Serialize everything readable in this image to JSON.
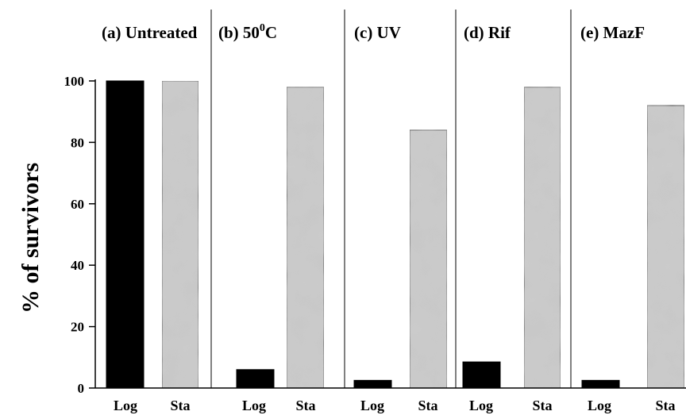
{
  "chart_data": {
    "type": "bar",
    "ylabel": "% of survivors",
    "ylim": [
      0,
      100
    ],
    "yticks": [
      0,
      20,
      40,
      60,
      80,
      100
    ],
    "panels": [
      {
        "label": "(a) Untreated",
        "categories": [
          "Log",
          "Sta"
        ],
        "values": [
          100,
          100
        ]
      },
      {
        "label": "(b) 50",
        "label_sup": "0",
        "label_suffix": "C",
        "categories": [
          "Log",
          "Sta"
        ],
        "values": [
          6,
          98
        ]
      },
      {
        "label": "(c) UV",
        "categories": [
          "Log",
          "Sta"
        ],
        "values": [
          2.5,
          84
        ]
      },
      {
        "label": "(d) Rif",
        "categories": [
          "Log",
          "Sta"
        ],
        "values": [
          8.5,
          98
        ]
      },
      {
        "label": "(e) MazF",
        "categories": [
          "Log",
          "Sta"
        ],
        "values": [
          2.5,
          92
        ]
      }
    ],
    "series_colors": {
      "Log": "#000000",
      "Sta": "#c8c8c8"
    },
    "grid": false,
    "legend": "none"
  }
}
